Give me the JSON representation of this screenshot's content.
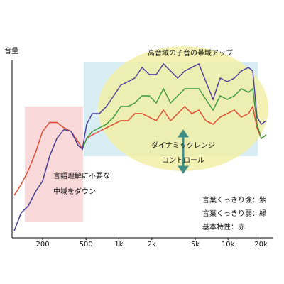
{
  "chart_data": {
    "type": "line",
    "ylabel": "音量",
    "annotations": [
      "高音域の子音の帯域アップ",
      "ダイナミックレンジ",
      "コントロール",
      "言語理解に不要な",
      "中域をダウン"
    ],
    "legend_texts": [
      "言葉くっきり強：紫",
      "言葉くっきり弱：緑",
      "基本特性：赤"
    ],
    "x": [
      110,
      127,
      148,
      172,
      200,
      232,
      270,
      314,
      365,
      424,
      463,
      506,
      571,
      663,
      767,
      895,
      1040,
      1210,
      1400,
      1630,
      1900,
      2200,
      2560,
      2970,
      3450,
      4010,
      4650,
      5400,
      6270,
      7290,
      8470,
      9830,
      11400,
      13230,
      15400,
      16850,
      18430,
      20200,
      22400
    ],
    "xscale": "log",
    "xlim": [
      105,
      26000
    ],
    "ylim": [
      0,
      100
    ],
    "xticks": [
      200,
      500,
      {
        "value": 1000,
        "label": "1k"
      },
      {
        "value": 2000,
        "label": "2k"
      },
      {
        "value": 5000,
        "label": "5k"
      },
      {
        "value": 10000,
        "label": "10k"
      },
      {
        "value": 20000,
        "label": "20k"
      }
    ],
    "series": [
      {
        "color": "#e0452a",
        "values": [
          24,
          30,
          38,
          48,
          60,
          65,
          65,
          62,
          60,
          54,
          50,
          56,
          58,
          60,
          62,
          64,
          66,
          66,
          70,
          70,
          68,
          66,
          72,
          66,
          70,
          74,
          70,
          72,
          66,
          64,
          68,
          70,
          72,
          68,
          70,
          74,
          62,
          56,
          58
        ]
      },
      {
        "color": "#3a9a3a",
        "values": [
          4,
          14,
          18,
          26,
          32,
          46,
          56,
          61,
          60,
          52,
          50,
          56,
          60,
          62,
          64,
          68,
          74,
          74,
          76,
          80,
          80,
          76,
          84,
          76,
          80,
          84,
          84,
          84,
          78,
          72,
          80,
          78,
          80,
          84,
          82,
          84,
          64,
          56,
          58
        ]
      },
      {
        "color": "#4b3a9c",
        "values": [
          4,
          14,
          18,
          26,
          32,
          46,
          56,
          61,
          60,
          52,
          50,
          64,
          70,
          70,
          74,
          80,
          86,
          88,
          90,
          96,
          92,
          92,
          98,
          94,
          90,
          94,
          96,
          98,
          88,
          78,
          90,
          88,
          90,
          94,
          96,
          94,
          68,
          64,
          66
        ]
      }
    ]
  }
}
